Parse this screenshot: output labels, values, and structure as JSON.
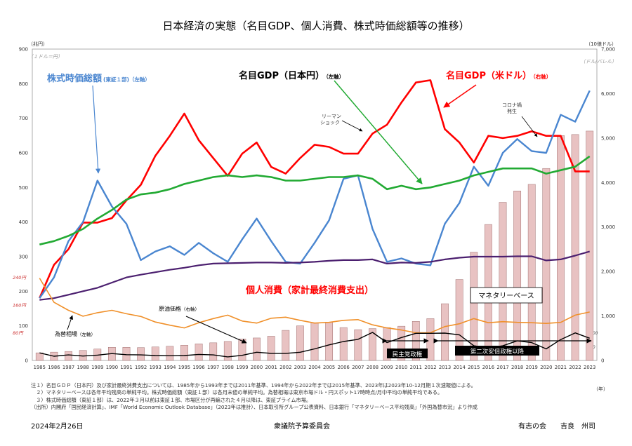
{
  "chart_data": {
    "type": "combo-bar-line",
    "title": "日本経済の実態（名目GDP、個人消費、株式時価総額等の推移）",
    "x": [
      1985,
      1986,
      1987,
      1988,
      1989,
      1990,
      1991,
      1992,
      1993,
      1994,
      1995,
      1996,
      1997,
      1998,
      1999,
      2000,
      2001,
      2002,
      2003,
      2004,
      2005,
      2006,
      2007,
      2008,
      2009,
      2010,
      2011,
      2012,
      2013,
      2014,
      2015,
      2016,
      2017,
      2018,
      2019,
      2020,
      2021,
      2022,
      2023
    ],
    "x_labels": [
      "1985",
      "1986",
      "1987",
      "1988",
      "1989",
      "1990",
      "1991",
      "1992",
      "1993",
      "1994",
      "1995",
      "1996",
      "1997",
      "1998",
      "1999",
      "2000",
      "2001",
      "2002",
      "2003",
      "2004",
      "2005",
      "2006",
      "2007",
      "2008",
      "2009",
      "2010",
      "2011",
      "2012",
      "2013",
      "2014",
      "2015",
      "2016",
      "2017",
      "2018",
      "2019",
      "2020",
      "2021",
      "2022",
      "2023"
    ],
    "x_unit": "（年）",
    "left_axis": {
      "unit": "（兆円）",
      "sub_unit": "（１ドル＝円）",
      "range": [
        0,
        900
      ],
      "ticks": [
        "0",
        "100",
        "200",
        "300",
        "400",
        "500",
        "600",
        "700",
        "800",
        "900"
      ],
      "yen_ticks": [
        "80円",
        "160円",
        "240円"
      ]
    },
    "right_axis": {
      "unit": "（10億ドル）",
      "sub_unit": "（ドル/バレル）",
      "range": [
        0,
        7000
      ],
      "ticks": [
        "0",
        "1,000",
        "2,000",
        "3,000",
        "4,000",
        "5,000",
        "6,000",
        "7,000"
      ],
      "oil_ticks": [
        "50",
        "100"
      ]
    },
    "series": [
      {
        "name": "マネタリーベース",
        "type": "bar",
        "axis": "left",
        "color": "#e8c2c2",
        "values": [
          22,
          24,
          26,
          29,
          33,
          38,
          38,
          37,
          39,
          41,
          44,
          48,
          51,
          55,
          62,
          65,
          70,
          87,
          100,
          109,
          111,
          95,
          89,
          92,
          95,
          99,
          113,
          121,
          164,
          234,
          313,
          393,
          457,
          490,
          509,
          555,
          650,
          653,
          663
        ]
      },
      {
        "name": "名目GDP（米ドル）",
        "type": "line",
        "axis": "right",
        "color": "#ff0000",
        "values": [
          1400,
          2150,
          2500,
          3100,
          3100,
          3200,
          3600,
          3950,
          4600,
          5050,
          5550,
          4950,
          4550,
          4150,
          4650,
          4900,
          4350,
          4200,
          4550,
          4850,
          4800,
          4650,
          4650,
          5100,
          5300,
          5800,
          6250,
          6300,
          5200,
          4900,
          4450,
          5050,
          5000,
          5050,
          5150,
          5050,
          5050,
          4250,
          4250
        ]
      },
      {
        "name": "株式時価総額（東証１部）",
        "type": "line",
        "axis": "left",
        "color": "#4a86d0",
        "values": [
          180,
          240,
          345,
          400,
          520,
          445,
          395,
          290,
          315,
          330,
          305,
          340,
          310,
          285,
          350,
          410,
          345,
          285,
          280,
          340,
          405,
          525,
          535,
          380,
          285,
          295,
          280,
          275,
          395,
          455,
          560,
          505,
          600,
          640,
          605,
          600,
          710,
          690,
          780
        ]
      },
      {
        "name": "名目GDP（日本円）",
        "type": "line",
        "axis": "left",
        "color": "#22aa33",
        "values": [
          335,
          345,
          360,
          380,
          410,
          435,
          465,
          480,
          485,
          495,
          510,
          520,
          530,
          535,
          530,
          535,
          530,
          520,
          520,
          525,
          530,
          530,
          535,
          525,
          495,
          505,
          495,
          500,
          510,
          520,
          535,
          545,
          555,
          555,
          555,
          540,
          550,
          560,
          590
        ]
      },
      {
        "name": "個人消費（家計最終消費支出）",
        "type": "line",
        "axis": "left",
        "color": "#4b1f6f",
        "values": [
          175,
          180,
          190,
          200,
          210,
          225,
          240,
          248,
          255,
          262,
          268,
          275,
          280,
          281,
          282,
          283,
          283,
          282,
          283,
          285,
          288,
          290,
          290,
          292,
          280,
          283,
          282,
          285,
          292,
          297,
          300,
          300,
          300,
          301,
          301,
          289,
          292,
          303,
          315
        ]
      },
      {
        "name": "為替相場",
        "type": "line",
        "axis": "left",
        "color": "#f0902a",
        "values": [
          238,
          168,
          145,
          128,
          138,
          145,
          135,
          127,
          111,
          102,
          94,
          109,
          121,
          131,
          114,
          108,
          122,
          125,
          116,
          108,
          110,
          116,
          118,
          103,
          94,
          88,
          80,
          80,
          98,
          106,
          121,
          109,
          112,
          110,
          109,
          107,
          110,
          131,
          140
        ]
      },
      {
        "name": "原油価格",
        "type": "line",
        "axis": "right",
        "color": "#000000",
        "values": [
          170,
          95,
          125,
          100,
          120,
          155,
          130,
          125,
          110,
          105,
          110,
          135,
          125,
          80,
          115,
          185,
          160,
          160,
          185,
          260,
          350,
          425,
          475,
          630,
          400,
          515,
          610,
          610,
          615,
          575,
          330,
          280,
          330,
          440,
          400,
          260,
          470,
          620,
          500
        ]
      }
    ],
    "annotations": [
      {
        "text": "株式時価総額",
        "small": "(東証１部)（左軸）"
      },
      {
        "text": "名目GDP（日本円）",
        "small": "（左軸）"
      },
      {
        "text": "名目GDP（米ドル）",
        "small": "（右軸）"
      },
      {
        "text": "個人消費（家計最終消費支出）"
      },
      {
        "text": "マネタリーベース"
      },
      {
        "text": "リーマン\nショック"
      },
      {
        "text": "コロナ禍\n発生"
      },
      {
        "text": "原油価格",
        "small": "（右軸）"
      },
      {
        "text": "為替相場",
        "small": "（左軸）"
      },
      {
        "text": "民主党政権"
      },
      {
        "text": "第二次安倍政権以降"
      }
    ]
  },
  "labels": {
    "stock": "株式時価総額",
    "stock_small": "(東証１部)（左軸）",
    "gdp_yen": "名目GDP（日本円）",
    "gdp_yen_small": "（左軸）",
    "gdp_usd": "名目GDP（米ドル）",
    "gdp_usd_small": "（右軸）",
    "consumption": "個人消費（家計最終消費支出）",
    "monetary": "マネタリーベース",
    "lehman_1": "リーマン",
    "lehman_2": "ショック",
    "corona_1": "コロナ禍",
    "corona_2": "発生",
    "oil": "原油価格",
    "oil_small": "（右軸）",
    "fx": "為替相場",
    "fx_small": "（左軸）",
    "dpj": "民主党政権",
    "abe": "第二次安倍政権以降"
  },
  "notes": [
    "注１）名目ＧＤＰ（日本円）及び家計最終消費支出については、1985年から1993年までは2011年基準、1994年から2022年までは2015年基準、2023年は2023年10-12月期１次速報値による。",
    "　２）マネタリーベースは各年平均残高の単純平均。株式時価総額（東証１部）は各月末値の単純平均。為替相場は東京市場ドル・円スポット17時時点/月中平均の単純平均である。",
    "　３）株式時価総額（東証１部）は、2022年３月以前は東証１部、市場区分が再編された４月以降は、東証プライム市場。",
    "（出所）内閣府「国民経済計算」、IMF「World Economic Outlook Database」（2023年は推計）、日本取引所グループ公表資料、日本銀行「マネタリーベース平均残高」「外国為替市況」より作成"
  ],
  "footer": {
    "date": "2024年2月26日",
    "org": "衆議院予算委員会",
    "author": "有志の会　　吉良　州司"
  }
}
